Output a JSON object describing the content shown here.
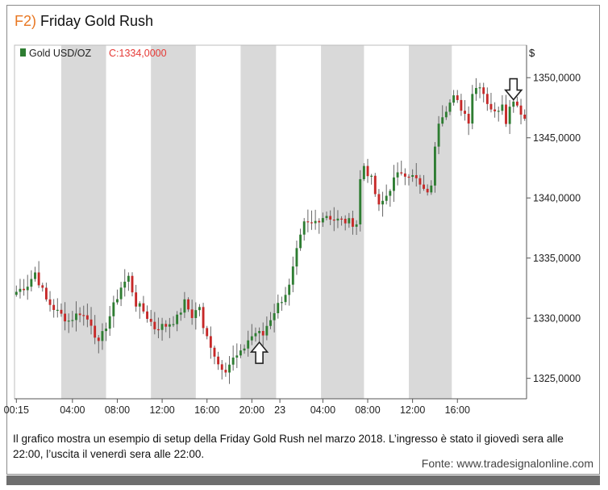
{
  "title": {
    "num": "F2)",
    "text": "Friday Gold Rush"
  },
  "legend": {
    "label": "Gold USD/OZ",
    "close": "C:1334,0000"
  },
  "unit": "$",
  "caption": "Il grafico mostra un esempio di setup della Friday Gold Rush nel marzo 2018. L’ingresso è stato il giovedì sera alle 22:00, l’uscita il venerdì sera alle 22:00.",
  "source": "Fonte: www.tradesignalonline.com",
  "colors": {
    "up": "#2e7d32",
    "down": "#c62828",
    "band": "#d9d9d9",
    "accent": "#e87722",
    "close": "#e53935"
  },
  "icons": {
    "entry": "arrow-up-icon",
    "exit": "arrow-down-icon"
  },
  "chart_data": {
    "type": "candlestick",
    "series_name": "Gold USD/OZ",
    "x_tick_labels": [
      "00:15",
      "04:00",
      "08:00",
      "12:00",
      "16:00",
      "20:00",
      "23",
      "04:00",
      "08:00",
      "12:00",
      "16:00"
    ],
    "x_tick_positions": [
      0,
      15,
      27,
      39,
      51,
      63,
      70.5,
      82,
      94,
      106,
      118
    ],
    "shaded_bands": [
      [
        12,
        24
      ],
      [
        36,
        48
      ],
      [
        60,
        69.5
      ],
      [
        81.5,
        93
      ],
      [
        105,
        116.5
      ]
    ],
    "y_tick_labels": [
      "1325,0000",
      "1330,0000",
      "1335,0000",
      "1340,0000",
      "1345,0000",
      "1350,0000"
    ],
    "y_ticks": [
      1325,
      1330,
      1335,
      1340,
      1345,
      1350
    ],
    "ylim": [
      1323.3,
      1352.7
    ],
    "xlim": [
      -0.5,
      136.5
    ],
    "entry": {
      "x": 65,
      "y": 1328.4
    },
    "exit": {
      "x": 133,
      "y": 1348.3
    },
    "anchors": [
      [
        0,
        1332.2
      ],
      [
        3,
        1332.8
      ],
      [
        5,
        1333.8
      ],
      [
        8,
        1331.5
      ],
      [
        11,
        1330.5
      ],
      [
        14,
        1329.8
      ],
      [
        17,
        1330.5
      ],
      [
        20,
        1329.6
      ],
      [
        22,
        1327.8
      ],
      [
        25,
        1330.2
      ],
      [
        28,
        1332.6
      ],
      [
        30,
        1333.4
      ],
      [
        32,
        1331.2
      ],
      [
        34,
        1330.6
      ],
      [
        37,
        1329.2
      ],
      [
        40,
        1329.4
      ],
      [
        43,
        1330.0
      ],
      [
        45,
        1331.3
      ],
      [
        47,
        1330.2
      ],
      [
        49,
        1331.0
      ],
      [
        50,
        1329.0
      ],
      [
        52,
        1327.8
      ],
      [
        54,
        1326.2
      ],
      [
        56,
        1325.8
      ],
      [
        58,
        1326.6
      ],
      [
        60,
        1327.0
      ],
      [
        62,
        1328.2
      ],
      [
        64,
        1328.8
      ],
      [
        66,
        1328.6
      ],
      [
        67,
        1329.4
      ],
      [
        69,
        1330.6
      ],
      [
        71,
        1331.6
      ],
      [
        73,
        1332.6
      ],
      [
        75,
        1335.5
      ],
      [
        77,
        1337.8
      ],
      [
        79,
        1337.8
      ],
      [
        81,
        1338.3
      ],
      [
        83,
        1338.6
      ],
      [
        85,
        1338.2
      ],
      [
        87,
        1338.1
      ],
      [
        89,
        1338.0
      ],
      [
        91,
        1337.9
      ],
      [
        92,
        1341.5
      ],
      [
        93,
        1342.7
      ],
      [
        95,
        1341.5
      ],
      [
        97,
        1339.2
      ],
      [
        99,
        1340.2
      ],
      [
        101,
        1341.5
      ],
      [
        103,
        1342.2
      ],
      [
        105,
        1342.0
      ],
      [
        107,
        1341.5
      ],
      [
        109,
        1340.5
      ],
      [
        111,
        1340.8
      ],
      [
        112,
        1344.5
      ],
      [
        113,
        1346.5
      ],
      [
        115,
        1347.5
      ],
      [
        117,
        1348.3
      ],
      [
        119,
        1347.5
      ],
      [
        121,
        1346.5
      ],
      [
        122,
        1348.8
      ],
      [
        124,
        1349.5
      ],
      [
        126,
        1348.0
      ],
      [
        128,
        1347.0
      ],
      [
        130,
        1348.0
      ],
      [
        131,
        1346.5
      ],
      [
        132,
        1347.5
      ],
      [
        133,
        1348.3
      ],
      [
        135,
        1347.2
      ],
      [
        136,
        1346.6
      ]
    ],
    "last_close": 1334.0
  }
}
